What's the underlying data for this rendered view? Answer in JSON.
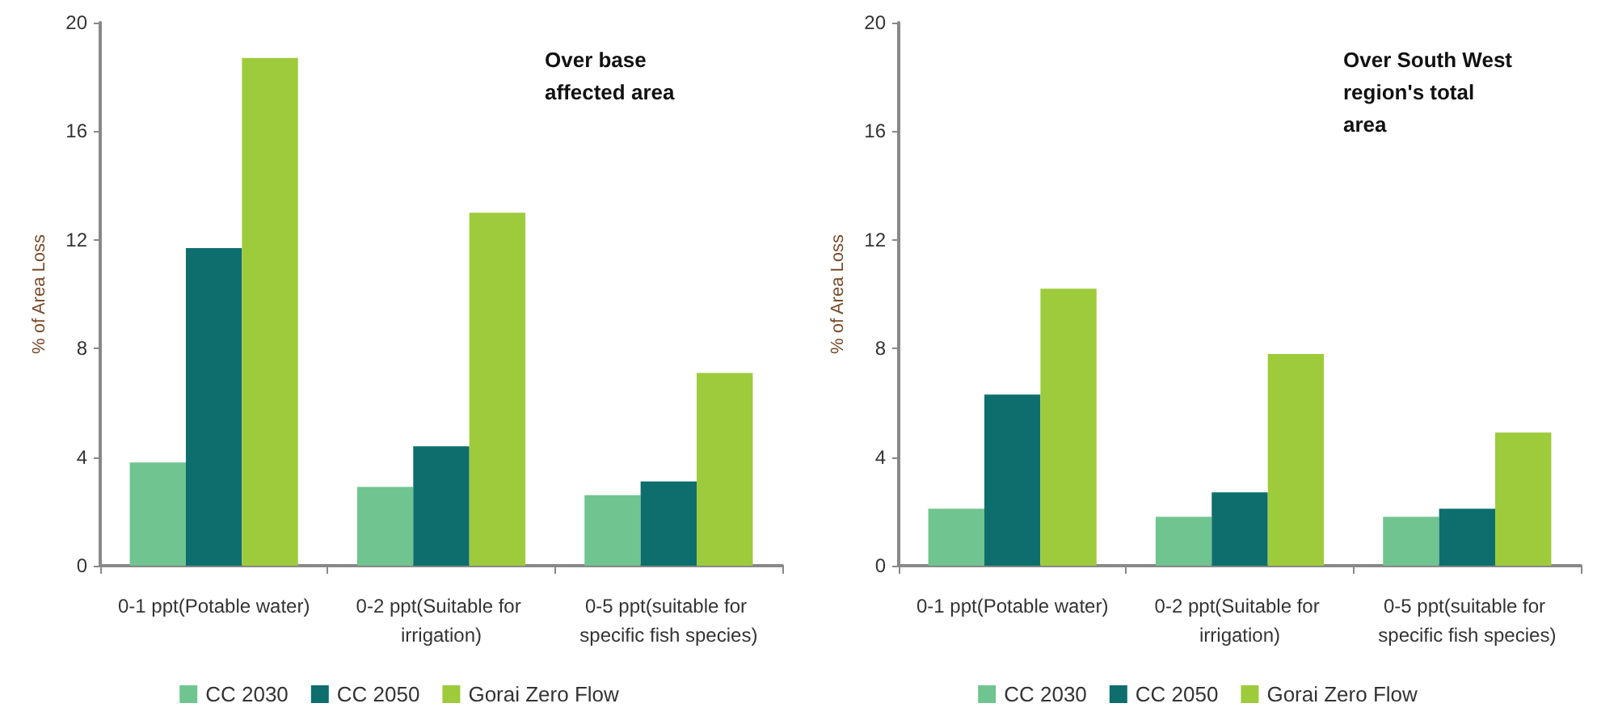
{
  "chart_data": [
    {
      "type": "bar",
      "title": "Over base affected area",
      "ylabel": "% of Area Loss",
      "categories": [
        "0-1 ppt(Potable water)",
        "0-2 ppt(Suitable for irrigation)",
        "0-5 ppt(suitable for specific fish species)"
      ],
      "series": [
        {
          "name": "CC 2030",
          "color": "#70c48f",
          "values": [
            3.8,
            2.9,
            2.6
          ]
        },
        {
          "name": "CC 2050",
          "color": "#0e6e6e",
          "values": [
            11.7,
            4.4,
            3.1
          ]
        },
        {
          "name": "Gorai Zero Flow",
          "color": "#9dcb3c",
          "values": [
            18.7,
            13.0,
            7.1
          ]
        }
      ],
      "ylim": [
        0,
        20
      ],
      "yticks": [
        0,
        4,
        8,
        12,
        16,
        20
      ],
      "grid": false,
      "legend": "bottom"
    },
    {
      "type": "bar",
      "title": "Over South West region's total area",
      "ylabel": "% of Area Loss",
      "categories": [
        "0-1 ppt(Potable water)",
        "0-2 ppt(Suitable for irrigation)",
        "0-5 ppt(suitable for specific fish species)"
      ],
      "series": [
        {
          "name": "CC 2030",
          "color": "#70c48f",
          "values": [
            2.1,
            1.8,
            1.8
          ]
        },
        {
          "name": "CC 2050",
          "color": "#0e6e6e",
          "values": [
            6.3,
            2.7,
            2.1
          ]
        },
        {
          "name": "Gorai Zero Flow",
          "color": "#9dcb3c",
          "values": [
            10.2,
            7.8,
            4.9
          ]
        }
      ],
      "ylim": [
        0,
        20
      ],
      "yticks": [
        0,
        4,
        8,
        12,
        16,
        20
      ],
      "grid": false,
      "legend": "bottom"
    }
  ]
}
